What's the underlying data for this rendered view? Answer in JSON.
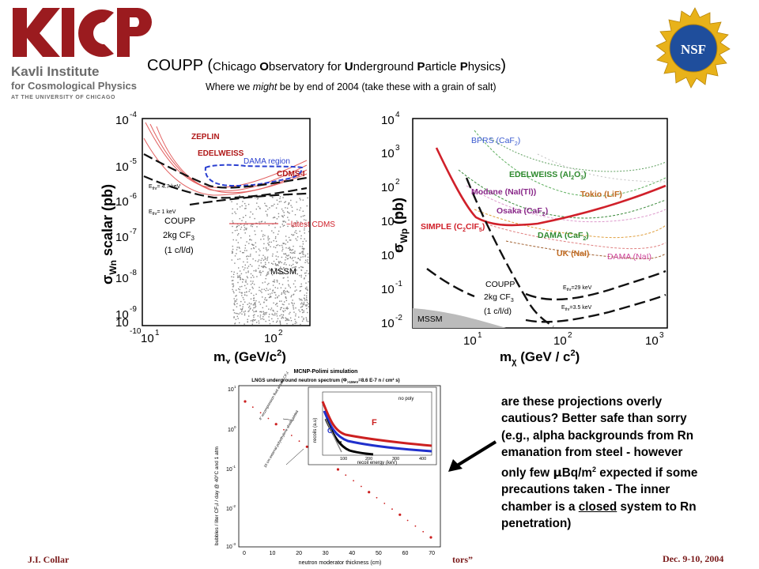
{
  "header": {
    "logo_text": "KICP",
    "institute_line1": "Kavli Institute",
    "institute_line2": "for Cosmological Physics",
    "institute_line3": "AT THE UNIVERSITY OF CHICAGO",
    "title_main": "COUPP (",
    "title_C": "C",
    "title_hicago": "hicago ",
    "title_O": "O",
    "title_bservatory": "bservatory for ",
    "title_U": "U",
    "title_nderground": "nderground ",
    "title_P1": "P",
    "title_article": "article ",
    "title_P2": "P",
    "title_hysics": "hysics",
    "title_close": ")",
    "subtitle_a": "Where we ",
    "subtitle_b": "might",
    "subtitle_c": " be by end of 2004  (take these with a grain of salt)",
    "nsf_label": "NSF"
  },
  "left_plot": {
    "yticks": [
      "10",
      "10",
      "10",
      "10",
      "10",
      "10",
      "10"
    ],
    "yexps": [
      "-4",
      "-5",
      "-6",
      "-7",
      "-8",
      "-9",
      "-10"
    ],
    "xticks": [
      "10",
      "10"
    ],
    "xexps": [
      "1",
      "2"
    ],
    "ylabel_a": "σ",
    "ylabel_sub": "Wn",
    "ylabel_b": " scalar (pb)",
    "xlabel_a": "m",
    "xlabel_sub": "χ",
    "xlabel_b": " (GeV/c",
    "xlabel_sup": "2",
    "xlabel_c": ")",
    "zeplin": "ZEPLIN",
    "edelweiss": "EDELWEISS",
    "dama": "DAMA region",
    "cdms": "CDMS-I",
    "ethr1": "E",
    "ethr1_sub": "thr",
    "ethr1_val": "= 4.7 keV",
    "ethr2_val": "= 1 keV",
    "coupp": "COUPP",
    "kg": "2kg CF",
    "kg_sub": "3",
    "cld": "(1 c/l/d)",
    "latest": "~latest CDMS",
    "mssm": "MSSM"
  },
  "right_plot": {
    "yticks": [
      "10",
      "10",
      "10",
      "10",
      "10",
      "10",
      "10"
    ],
    "yexps": [
      "4",
      "3",
      "2",
      "1",
      "0",
      "-1",
      "-2"
    ],
    "xticks": [
      "10",
      "10",
      "10"
    ],
    "xexps": [
      "1",
      "2",
      "3"
    ],
    "ylabel_a": "σ",
    "ylabel_sub": "Wp",
    "ylabel_b": " (pb)",
    "xlabel_a": "m",
    "xlabel_sub": "χ",
    "xlabel_b": " (GeV / c",
    "xlabel_sup": "2",
    "xlabel_c": ")",
    "bprs": "BPRS (CaF",
    "bprs_sub": "2",
    "bprs_end": ")",
    "edelweiss": "EDELWEISS (Al",
    "edel_sub1": "2",
    "edel_mid": "O",
    "edel_sub2": "3",
    "edel_end": ")",
    "modane": "Modane (NaI(Tl))",
    "tokio": "Tokio (LiF)",
    "osaka": "Osaka (CaF",
    "osaka_sub": "2",
    "osaka_end": ")",
    "simple": "SIMPLE (C",
    "simple_sub": "2",
    "simple_mid": "ClF",
    "simple_sub2": "5",
    "simple_end": ")",
    "dama_caf": "DAMA (CaF",
    "dama_caf_sub": "2",
    "dama_caf_end": ")",
    "uk": "UK (NaI)",
    "dama_nai": "DAMA (NaI)",
    "coupp": "COUPP",
    "kg": "2kg CF",
    "kg_sub": "3",
    "cld": "(1 c/l/d)",
    "e29": "=29 keV",
    "e35": "=3.5 keV",
    "ethr": "E",
    "ethr_sub": "thr",
    "mssm": "MSSM"
  },
  "sim_plot": {
    "title1": "MCNP-Polimi simulation",
    "title2": "LNGS underground neutron spectrum (Φ",
    "title2_sub": ">1MeV",
    "title2_b": "=8.6 E-7 n / cm² s)",
    "yticks": [
      "10",
      "10",
      "10",
      "10",
      "10"
    ],
    "yexps": [
      "1",
      "0",
      "-1",
      "-2",
      "-3"
    ],
    "xticks": [
      "0",
      "10",
      "20",
      "30",
      "40",
      "50",
      "60",
      "70"
    ],
    "xlabel": "neutron moderator thickness (cm)",
    "ylabel": "bubbles / liter CF₃I / day @ 40°C and 1 atm",
    "ann1": "4\" recompression fluid around CF₃I",
    "ann2": "10 cm external polyethylene shield added",
    "inset_ylabel": "recoils (a.u)",
    "inset_xlabel": "recoil energy (keV)",
    "inset_xticks": [
      "100",
      "200",
      "300",
      "400"
    ],
    "inset_nopoly": "no poly",
    "inset_F": "F",
    "inset_C": "C",
    "inset_I": "I"
  },
  "note": {
    "l1": "are these projections overly",
    "l2": "cautious? Better safe than sorry",
    "l3": "(e.g., alpha backgrounds from Rn",
    "l4": "emanation from steel - however",
    "l5a": "only few ",
    "l5mu": "μ",
    "l5b": "Bq/m",
    "l5sup": "2",
    "l5c": " expected if some",
    "l6": "precautions taken - The inner",
    "l7a": "chamber is a ",
    "l7u": "closed",
    "l7b": " system to Rn",
    "l8": "penetration)"
  },
  "footer": {
    "left": "J.I. Collar",
    "mid": "tors”",
    "right": "Dec. 9-10, 2004"
  },
  "colors": {
    "kicp_red": "#9b1b1f",
    "gray_text": "#6b6b6b",
    "nsf_blue": "#1f4e9c",
    "nsf_gold": "#e8b21a",
    "simple_red": "#d0202a",
    "dama_blue": "#2a3fd0"
  }
}
